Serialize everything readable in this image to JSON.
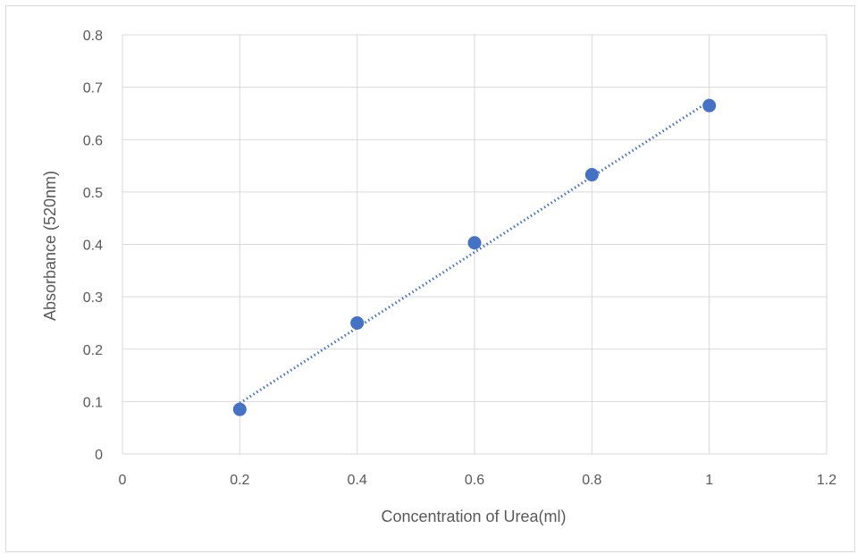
{
  "chart_data": {
    "type": "scatter",
    "title": "",
    "xlabel": "Concentration of Urea(ml)",
    "ylabel": "Absorbance (520nm)",
    "xlim": [
      0,
      1.2
    ],
    "ylim": [
      0,
      0.8
    ],
    "x_ticks": [
      "0",
      "0.2",
      "0.4",
      "0.6",
      "0.8",
      "1",
      "1.2"
    ],
    "y_ticks": [
      "0",
      "0.1",
      "0.2",
      "0.3",
      "0.4",
      "0.5",
      "0.6",
      "0.7",
      "0.8"
    ],
    "grid": true,
    "legend": "none",
    "series": [
      {
        "x": [
          0.2,
          0.4,
          0.6,
          0.8,
          1.0
        ],
        "y": [
          0.085,
          0.25,
          0.403,
          0.533,
          0.665
        ],
        "color": "#4472c4",
        "marker": "circle"
      }
    ],
    "trendline": {
      "type": "linear",
      "style": "dotted",
      "color": "#4472c4",
      "from": [
        0.2,
        0.097
      ],
      "to": [
        1.0,
        0.673
      ]
    }
  }
}
